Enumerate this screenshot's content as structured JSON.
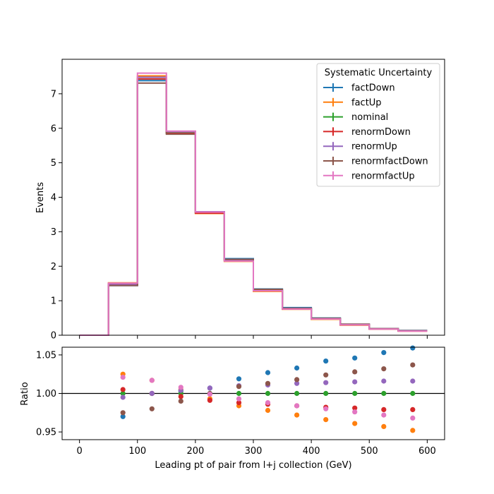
{
  "chart_data": [
    {
      "type": "step",
      "panel": "main",
      "ylabel": "Events",
      "xlim": [
        -30,
        630
      ],
      "ylim": [
        0,
        8
      ],
      "y_ticks": [
        0,
        1,
        2,
        3,
        4,
        5,
        6,
        7
      ],
      "bin_edges": [
        0,
        50,
        100,
        150,
        200,
        250,
        300,
        350,
        400,
        450,
        500,
        550,
        600
      ],
      "legend_title": "Systematic Uncertainty",
      "legend_position": "top-right",
      "series": [
        {
          "name": "factDown",
          "color": "#1f77b4",
          "values": [
            0,
            1.44,
            7.38,
            5.87,
            3.57,
            2.22,
            1.34,
            0.8,
            0.5,
            0.32,
            0.19,
            0.14
          ]
        },
        {
          "name": "factUp",
          "color": "#ff7f0e",
          "values": [
            0,
            1.52,
            7.52,
            5.9,
            3.53,
            2.14,
            1.27,
            0.75,
            0.46,
            0.29,
            0.18,
            0.12
          ]
        },
        {
          "name": "nominal",
          "color": "#2ca02c",
          "values": [
            0,
            1.48,
            7.43,
            5.87,
            3.55,
            2.18,
            1.31,
            0.77,
            0.48,
            0.31,
            0.19,
            0.13
          ]
        },
        {
          "name": "renormDown",
          "color": "#d62728",
          "values": [
            0,
            1.49,
            7.43,
            5.85,
            3.54,
            2.16,
            1.29,
            0.76,
            0.47,
            0.3,
            0.18,
            0.12
          ]
        },
        {
          "name": "renormUp",
          "color": "#9467bd",
          "values": [
            0,
            1.47,
            7.48,
            5.9,
            3.58,
            2.19,
            1.33,
            0.78,
            0.49,
            0.31,
            0.19,
            0.13
          ]
        },
        {
          "name": "renormfactDown",
          "color": "#8c564b",
          "values": [
            0,
            1.44,
            7.31,
            5.83,
            3.57,
            2.2,
            1.33,
            0.78,
            0.49,
            0.32,
            0.19,
            0.13
          ]
        },
        {
          "name": "renormfactUp",
          "color": "#e377c2",
          "values": [
            0,
            1.51,
            7.6,
            5.92,
            3.57,
            2.15,
            1.29,
            0.76,
            0.47,
            0.3,
            0.18,
            0.12
          ]
        }
      ]
    },
    {
      "type": "scatter",
      "panel": "ratio",
      "xlabel": "Leading pt of pair from l+j collection (GeV)",
      "ylabel": "Ratio",
      "xlim": [
        -30,
        630
      ],
      "ylim": [
        0.94,
        1.06
      ],
      "x_ticks": [
        0,
        100,
        200,
        300,
        400,
        500,
        600
      ],
      "y_ticks": [
        0.95,
        1.0,
        1.05
      ],
      "y_tick_labels": [
        "0.95",
        "1.00",
        "1.05"
      ],
      "reference_line": 1.0,
      "x": [
        75,
        125,
        175,
        225,
        275,
        325,
        375,
        425,
        475,
        525,
        575
      ],
      "series": [
        {
          "name": "factDown",
          "color": "#1f77b4",
          "values": [
            0.97,
            1.0,
            1.003,
            1.007,
            1.019,
            1.027,
            1.033,
            1.042,
            1.046,
            1.053,
            1.059
          ]
        },
        {
          "name": "factUp",
          "color": "#ff7f0e",
          "values": [
            1.025,
            1.017,
            1.005,
            0.993,
            0.984,
            0.978,
            0.972,
            0.966,
            0.961,
            0.957,
            0.952
          ]
        },
        {
          "name": "nominal",
          "color": "#2ca02c",
          "values": [
            1.0,
            1.0,
            1.0,
            1.0,
            1.0,
            1.0,
            1.0,
            1.0,
            1.0,
            1.0,
            1.0
          ]
        },
        {
          "name": "renormDown",
          "color": "#d62728",
          "values": [
            1.005,
            1.0,
            0.996,
            0.991,
            0.988,
            0.986,
            0.984,
            0.982,
            0.981,
            0.979,
            0.979
          ]
        },
        {
          "name": "renormUp",
          "color": "#9467bd",
          "values": [
            0.995,
            1.0,
            1.004,
            1.007,
            1.01,
            1.011,
            1.013,
            1.014,
            1.015,
            1.016,
            1.016
          ]
        },
        {
          "name": "renormfactDown",
          "color": "#8c564b",
          "values": [
            0.975,
            0.98,
            0.99,
            1.0,
            1.009,
            1.013,
            1.018,
            1.024,
            1.028,
            1.032,
            1.037
          ]
        },
        {
          "name": "renormfactUp",
          "color": "#e377c2",
          "values": [
            1.021,
            1.017,
            1.008,
            0.999,
            0.993,
            0.988,
            0.984,
            0.98,
            0.976,
            0.972,
            0.968
          ]
        }
      ]
    }
  ]
}
